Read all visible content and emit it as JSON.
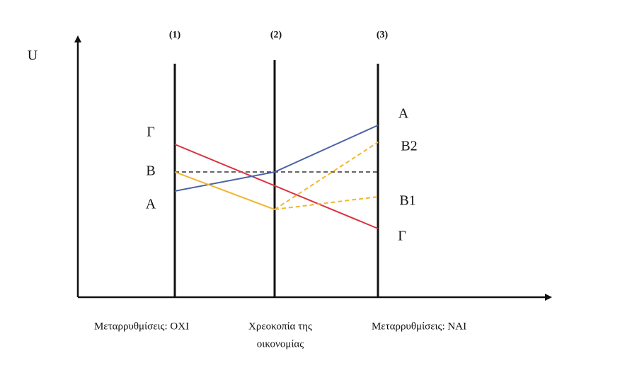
{
  "axis_label": "U",
  "columns": [
    "(1)",
    "(2)",
    "(3)"
  ],
  "left_labels": [
    "Γ",
    "B",
    "A"
  ],
  "right_labels": [
    "A",
    "B2",
    "B1",
    "Γ"
  ],
  "bottom_labels": [
    [
      "Μεταρρυθμίσεις: ΟΧΙ"
    ],
    [
      "Χρεοκοπία της",
      "οικονομίας"
    ],
    [
      "Μεταρρυθμίσεις: ΝΑΙ"
    ]
  ]
}
